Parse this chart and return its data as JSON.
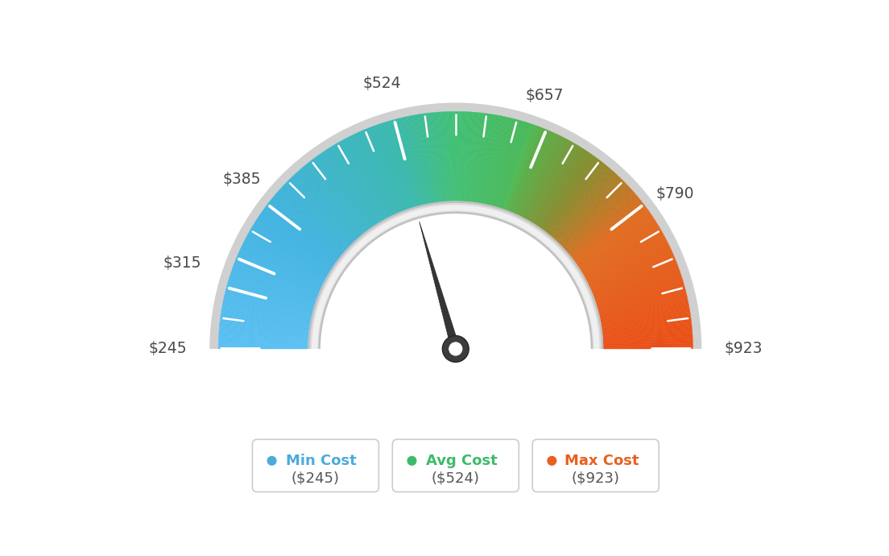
{
  "min_val": 245,
  "max_val": 923,
  "avg_val": 524,
  "needle_value": 524,
  "label_values": [
    245,
    315,
    385,
    524,
    657,
    790,
    923
  ],
  "color_stops": [
    [
      0.0,
      [
        0.35,
        0.75,
        0.95
      ]
    ],
    [
      0.2,
      [
        0.25,
        0.7,
        0.88
      ]
    ],
    [
      0.41,
      [
        0.22,
        0.72,
        0.68
      ]
    ],
    [
      0.5,
      [
        0.25,
        0.75,
        0.45
      ]
    ],
    [
      0.6,
      [
        0.28,
        0.72,
        0.35
      ]
    ],
    [
      0.605,
      [
        0.3,
        0.73,
        0.33
      ]
    ],
    [
      0.62,
      [
        0.35,
        0.68,
        0.28
      ]
    ],
    [
      0.7,
      [
        0.52,
        0.55,
        0.18
      ]
    ],
    [
      0.8,
      [
        0.88,
        0.42,
        0.12
      ]
    ],
    [
      1.0,
      [
        0.92,
        0.3,
        0.08
      ]
    ]
  ],
  "colors": {
    "outer_ring": "#CCCCCC",
    "inner_ring_dark": "#BBBBBB",
    "inner_ring_light": "#E8E8E8",
    "needle": "#3A3A3A",
    "needle_hub_outer": "#404040",
    "needle_hub_inner": "#FFFFFF",
    "legend_blue": "#4DAADD",
    "legend_green": "#3DBB6A",
    "legend_orange": "#E86020",
    "text": "#555555",
    "background": "#FFFFFF"
  },
  "legend": {
    "min_label": "Min Cost",
    "avg_label": "Avg Cost",
    "max_label": "Max Cost",
    "min_val_str": "($245)",
    "avg_val_str": "($524)",
    "max_val_str": "($923)"
  }
}
